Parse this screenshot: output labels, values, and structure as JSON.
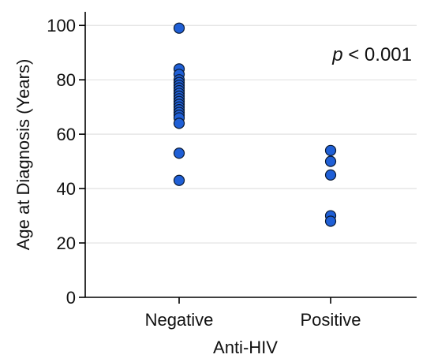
{
  "chart_data": {
    "type": "scatter",
    "xlabel": "Anti-HIV",
    "ylabel": "Age at Diagnosis (Years)",
    "categories": [
      "Negative",
      "Positive"
    ],
    "ylim": [
      0,
      105
    ],
    "yticks": [
      0,
      20,
      40,
      60,
      80,
      100
    ],
    "grid": true,
    "point_color": "#1f5fd6",
    "annotation": {
      "italic": "p",
      "rest": " < 0.001",
      "placement": "top-right"
    },
    "series": [
      {
        "category": "Negative",
        "values": [
          99,
          84,
          82,
          80,
          79,
          78,
          77,
          76,
          75,
          74,
          73,
          72,
          71,
          70,
          69,
          68,
          67,
          66,
          64,
          53,
          43
        ]
      },
      {
        "category": "Positive",
        "values": [
          54,
          50,
          45,
          30,
          28
        ]
      }
    ]
  }
}
